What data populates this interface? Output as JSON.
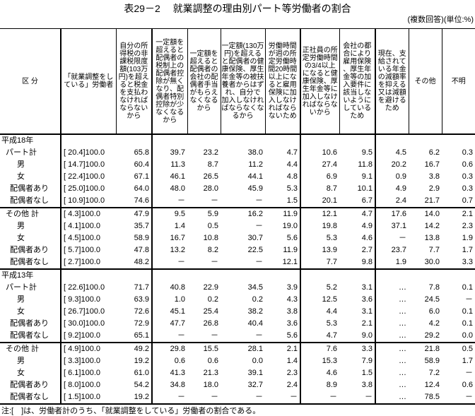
{
  "title": "表29－2　 就業調整の理由別パート等労働者の割合",
  "unit": "(複数回答)(単位:%)",
  "headers": [
    "区 分",
    "「就業調整をしている」労働者",
    "自分の所得税の非課税限度額(103万円)を超えると税金を支払わなければならないから",
    "一定額を超えると配偶者の税制上の配偶者控除が無くなり、配偶者特別控除が少なくなるから",
    "一定額を超えると配偶者の会社の配偶者手当がもらえなくなるから",
    "一定額(130万円)を超えると配偶者の健康保険、厚生年金等の被扶養者からはずれ、自分で加入しなければならなくなるから",
    "労働時間が週の所定労働時間20時間以上になると雇用保険に加入しなければならないため",
    "正社員の所定労働時間の3/4以上になると健康保険、厚生年金等に加入しなければならないから",
    "会社の都合により雇用保険、厚生年金等の加入要件に該当しないようにしているため",
    "現在、支給されている年金の減額率を抑える又は減額を避けるため",
    "その他",
    "不明"
  ],
  "sections": [
    {
      "label": "平成18年",
      "rows": [
        {
          "label": "パート計",
          "share": "[ 20.4]",
          "total": "100.0",
          "values": [
            "65.8",
            "39.7",
            "23.2",
            "38.0",
            "4.7",
            "10.6",
            "9.5",
            "4.5",
            "6.2",
            "0.3"
          ]
        },
        {
          "label": "男",
          "share": "[ 14.7]",
          "total": "100.0",
          "values": [
            "60.4",
            "11.3",
            "8.7",
            "11.2",
            "4.4",
            "27.4",
            "11.8",
            "20.2",
            "16.7",
            "0.6"
          ]
        },
        {
          "label": "女",
          "share": "[ 22.4]",
          "total": "100.0",
          "values": [
            "67.1",
            "46.1",
            "26.5",
            "44.1",
            "4.8",
            "6.9",
            "9.1",
            "0.9",
            "3.8",
            "0.3"
          ]
        },
        {
          "label": "配偶者あり",
          "share": "[ 25.0]",
          "total": "100.0",
          "values": [
            "64.0",
            "48.0",
            "28.0",
            "45.9",
            "5.3",
            "8.7",
            "10.1",
            "4.9",
            "2.9",
            "0.3"
          ]
        },
        {
          "label": "配偶者なし",
          "share": "[ 10.9]",
          "total": "100.0",
          "values": [
            "74.6",
            "－",
            "－",
            "－",
            "1.5",
            "20.1",
            "6.7",
            "2.4",
            "21.7",
            "0.7"
          ]
        },
        {
          "label": "その他 計",
          "share": "[ 4.3]",
          "total": "100.0",
          "values": [
            "47.9",
            "9.5",
            "5.9",
            "16.2",
            "11.9",
            "12.1",
            "4.7",
            "17.6",
            "14.0",
            "2.1"
          ]
        },
        {
          "label": "男",
          "share": "[ 4.1]",
          "total": "100.0",
          "values": [
            "35.7",
            "1.4",
            "0.5",
            "－",
            "19.0",
            "19.8",
            "4.9",
            "37.1",
            "14.2",
            "2.3"
          ]
        },
        {
          "label": "女",
          "share": "[ 4.5]",
          "total": "100.0",
          "values": [
            "58.9",
            "16.7",
            "10.8",
            "30.7",
            "5.6",
            "5.3",
            "4.6",
            "－",
            "13.8",
            "1.9"
          ]
        },
        {
          "label": "配偶者あり",
          "share": "[ 5.7]",
          "total": "100.0",
          "values": [
            "47.8",
            "13.2",
            "8.2",
            "22.5",
            "11.9",
            "13.9",
            "2.7",
            "23.7",
            "7.7",
            "1.7"
          ]
        },
        {
          "label": "配偶者なし",
          "share": "[ 2.7]",
          "total": "100.0",
          "values": [
            "48.2",
            "－",
            "－",
            "－",
            "12.1",
            "7.7",
            "9.8",
            "1.9",
            "30.0",
            "3.3"
          ]
        }
      ]
    },
    {
      "label": "平成13年",
      "rows": [
        {
          "label": "パート計",
          "share": "[ 22.6]",
          "total": "100.0",
          "values": [
            "71.7",
            "40.8",
            "22.9",
            "34.5",
            "3.9",
            "5.2",
            "3.1",
            "…",
            "7.8",
            "0.1"
          ]
        },
        {
          "label": "男",
          "share": "[ 9.3]",
          "total": "100.0",
          "values": [
            "63.9",
            "1.0",
            "0.2",
            "0.2",
            "4.3",
            "12.5",
            "3.6",
            "…",
            "24.5",
            "－"
          ]
        },
        {
          "label": "女",
          "share": "[ 26.7]",
          "total": "100.0",
          "values": [
            "72.6",
            "45.1",
            "25.4",
            "38.2",
            "3.8",
            "4.4",
            "3.1",
            "…",
            "6.0",
            "0.1"
          ]
        },
        {
          "label": "配偶者あり",
          "share": "[ 30.0]",
          "total": "100.0",
          "values": [
            "72.9",
            "47.7",
            "26.8",
            "40.4",
            "3.6",
            "5.3",
            "2.1",
            "…",
            "4.2",
            "0.1"
          ]
        },
        {
          "label": "配偶者なし",
          "share": "[ 9.2]",
          "total": "100.0",
          "values": [
            "65.1",
            "－",
            "－",
            "－",
            "5.6",
            "4.7",
            "9.0",
            "…",
            "29.2",
            "0.0"
          ]
        },
        {
          "label": "その他 計",
          "share": "[ 4.9]",
          "total": "100.0",
          "values": [
            "49.2",
            "29.8",
            "15.5",
            "28.1",
            "2.1",
            "7.6",
            "3.3",
            "…",
            "21.8",
            "0.5"
          ]
        },
        {
          "label": "男",
          "share": "[ 3.3]",
          "total": "100.0",
          "values": [
            "19.2",
            "0.6",
            "0.6",
            "0.0",
            "1.4",
            "15.3",
            "7.9",
            "…",
            "58.9",
            "1.7"
          ]
        },
        {
          "label": "女",
          "share": "[ 6.1]",
          "total": "100.0",
          "values": [
            "61.0",
            "41.3",
            "21.3",
            "39.1",
            "2.3",
            "4.6",
            "1.5",
            "…",
            "7.2",
            "－"
          ]
        },
        {
          "label": "配偶者あり",
          "share": "[ 8.0]",
          "total": "100.0",
          "values": [
            "54.2",
            "34.8",
            "18.0",
            "32.7",
            "2.4",
            "8.9",
            "3.8",
            "…",
            "12.4",
            "0.6"
          ]
        },
        {
          "label": "配偶者なし",
          "share": "[ 1.5]",
          "total": "100.0",
          "values": [
            "19.2",
            "－",
            "－",
            "－",
            "－",
            "－",
            "－",
            "…",
            "78.5",
            "－"
          ]
        }
      ]
    }
  ],
  "note": "注:[　]は、労働者計のうち、「就業調整をしている」労働者の割合である。"
}
